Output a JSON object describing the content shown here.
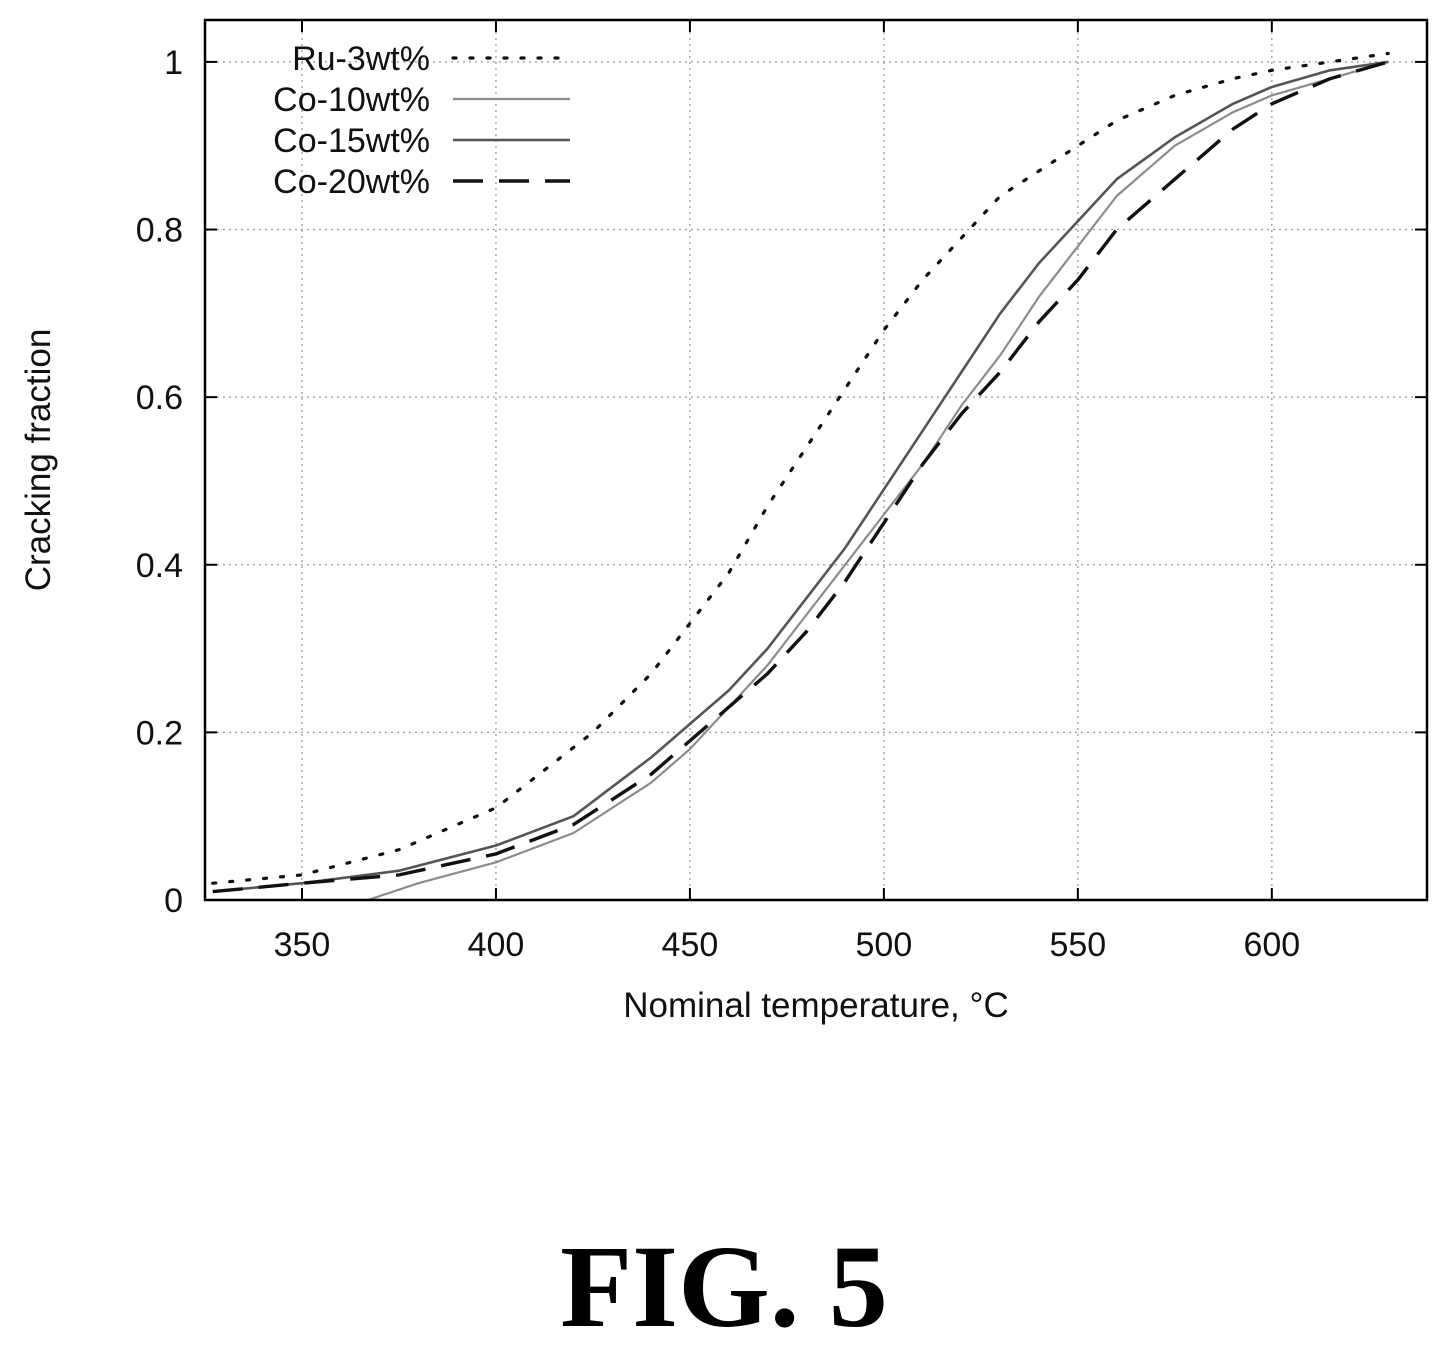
{
  "figure_label": "FIG. 5",
  "chart_data": {
    "type": "line",
    "title": "",
    "xlabel": "Nominal temperature, °C",
    "ylabel": "Cracking fraction",
    "xlim": [
      325,
      640
    ],
    "ylim": [
      0,
      1.05
    ],
    "xticks": [
      350,
      400,
      450,
      500,
      550,
      600
    ],
    "yticks": [
      0,
      0.2,
      0.4,
      0.6,
      0.8,
      1
    ],
    "ytick_labels": [
      "0",
      "0.2",
      "0.4",
      "0.6",
      "0.8",
      "1"
    ],
    "grid": true,
    "legend_position": "top-left",
    "series": [
      {
        "name": "Ru-3wt%",
        "style": "dotted",
        "color": "#111111",
        "x": [
          327,
          350,
          375,
          400,
          425,
          440,
          450,
          460,
          470,
          480,
          490,
          500,
          510,
          520,
          530,
          540,
          550,
          560,
          575,
          590,
          600,
          615,
          630
        ],
        "y": [
          0.02,
          0.03,
          0.06,
          0.11,
          0.2,
          0.27,
          0.33,
          0.39,
          0.47,
          0.54,
          0.61,
          0.68,
          0.74,
          0.79,
          0.84,
          0.87,
          0.9,
          0.93,
          0.96,
          0.98,
          0.99,
          1.0,
          1.01
        ]
      },
      {
        "name": "Co-10wt%",
        "style": "solid-light",
        "color": "#8c8c8c",
        "x": [
          367,
          380,
          400,
          420,
          440,
          450,
          460,
          470,
          480,
          490,
          500,
          510,
          520,
          530,
          540,
          550,
          560,
          575,
          590,
          600,
          615,
          630
        ],
        "y": [
          0.0,
          0.02,
          0.045,
          0.08,
          0.14,
          0.18,
          0.23,
          0.28,
          0.34,
          0.4,
          0.46,
          0.52,
          0.59,
          0.65,
          0.72,
          0.78,
          0.84,
          0.9,
          0.94,
          0.96,
          0.98,
          1.0
        ]
      },
      {
        "name": "Co-15wt%",
        "style": "solid",
        "color": "#555555",
        "x": [
          327,
          350,
          375,
          400,
          420,
          440,
          450,
          460,
          470,
          480,
          490,
          500,
          510,
          520,
          530,
          540,
          550,
          560,
          575,
          590,
          600,
          615,
          630
        ],
        "y": [
          0.01,
          0.02,
          0.035,
          0.065,
          0.1,
          0.17,
          0.21,
          0.25,
          0.3,
          0.36,
          0.42,
          0.49,
          0.56,
          0.63,
          0.7,
          0.76,
          0.81,
          0.86,
          0.91,
          0.95,
          0.97,
          0.99,
          1.0
        ]
      },
      {
        "name": "Co-20wt%",
        "style": "dashed",
        "color": "#111111",
        "x": [
          327,
          350,
          375,
          400,
          420,
          440,
          450,
          460,
          470,
          480,
          490,
          500,
          510,
          520,
          530,
          540,
          550,
          560,
          575,
          590,
          600,
          615,
          630
        ],
        "y": [
          0.01,
          0.02,
          0.03,
          0.055,
          0.09,
          0.15,
          0.19,
          0.23,
          0.27,
          0.32,
          0.38,
          0.45,
          0.52,
          0.58,
          0.63,
          0.69,
          0.74,
          0.8,
          0.86,
          0.92,
          0.95,
          0.98,
          1.0
        ]
      }
    ]
  }
}
